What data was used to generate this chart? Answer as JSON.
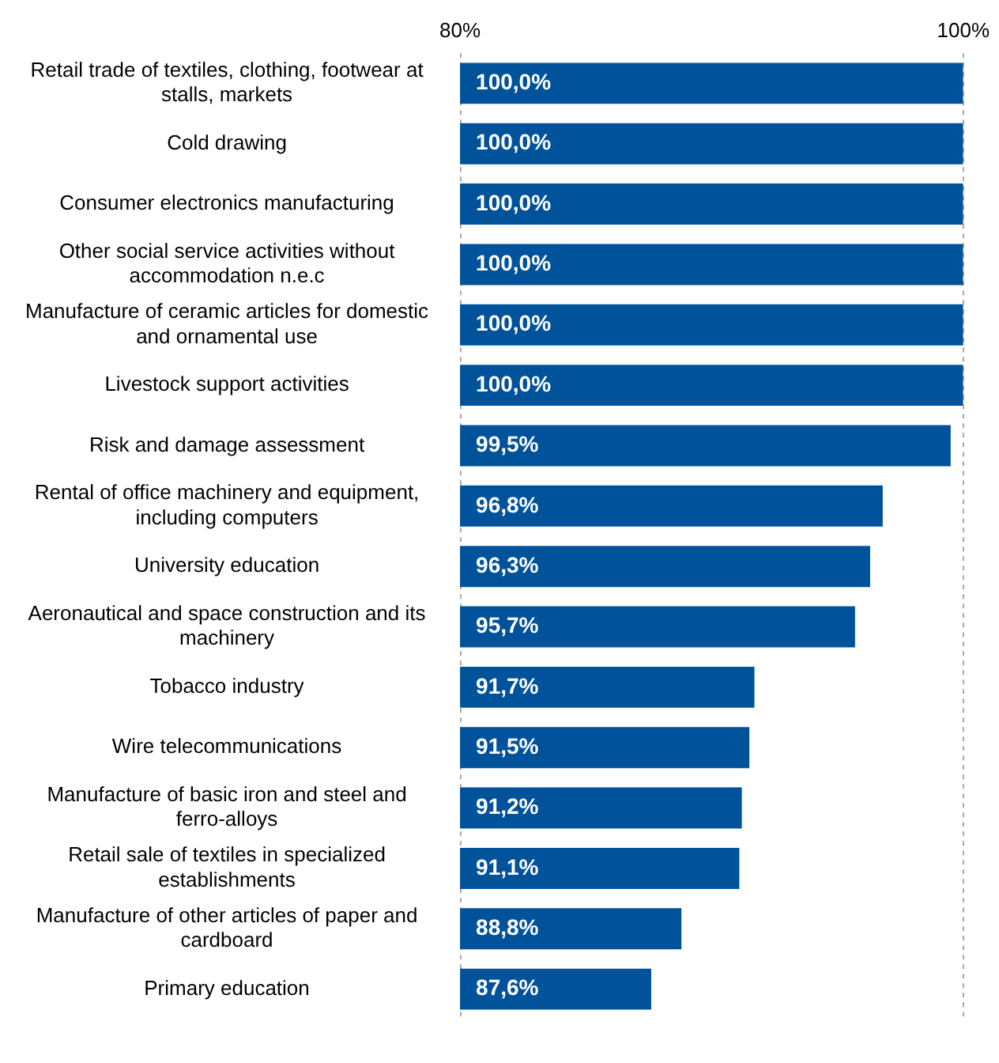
{
  "chart_data": {
    "type": "bar",
    "orientation": "horizontal",
    "categories": [
      "Retail trade of textiles, clothing, footwear at stalls, markets",
      "Cold drawing",
      "Consumer electronics manufacturing",
      "Other social service activities without accommodation n.e.c",
      "Manufacture of ceramic articles for domestic and ornamental use",
      "Livestock support activities",
      "Risk and damage assessment",
      "Rental of office machinery and equipment, including computers",
      "University education",
      "Aeronautical and space construction and its machinery",
      "Tobacco industry",
      "Wire telecommunications",
      "Manufacture of basic iron and steel and ferro-alloys",
      "Retail sale of textiles in specialized establishments",
      "Manufacture of other articles of paper and cardboard",
      "Primary education"
    ],
    "values": [
      100.0,
      100.0,
      100.0,
      100.0,
      100.0,
      100.0,
      99.5,
      96.8,
      96.3,
      95.7,
      91.7,
      91.5,
      91.2,
      91.1,
      88.8,
      87.6
    ],
    "value_labels": [
      "100,0%",
      "100,0%",
      "100,0%",
      "100,0%",
      "100,0%",
      "100,0%",
      "99,5%",
      "96,8%",
      "96,3%",
      "95,7%",
      "91,7%",
      "91,5%",
      "91,2%",
      "91,1%",
      "88,8%",
      "87,6%"
    ],
    "color": "#00529b",
    "xlim": [
      80,
      100
    ],
    "xticks": [
      {
        "value": 80,
        "label": "80%"
      },
      {
        "value": 100,
        "label": "100%"
      }
    ],
    "grid": "x",
    "legend": false
  }
}
